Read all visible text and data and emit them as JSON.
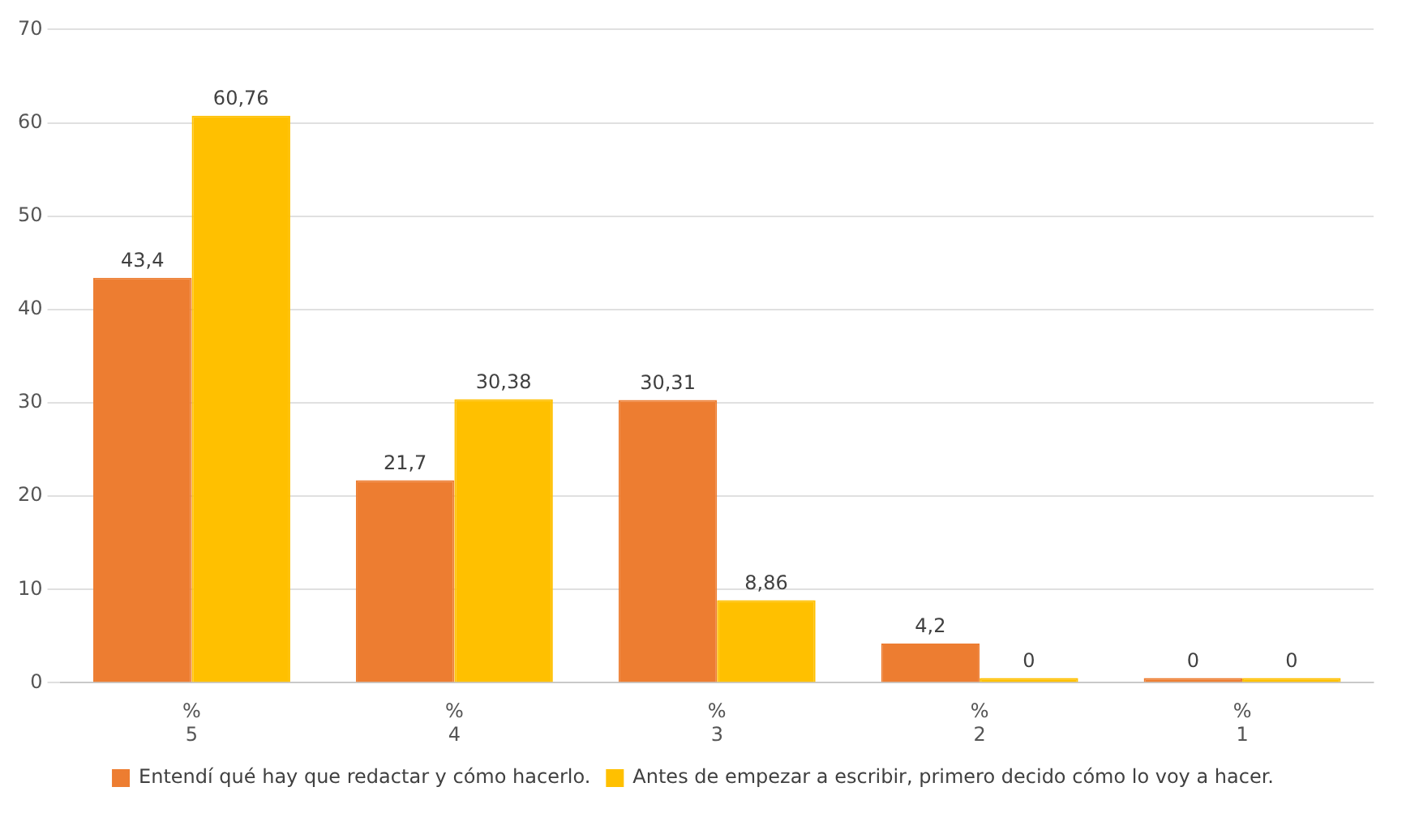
{
  "chart_data": {
    "type": "bar",
    "categories": [
      "%\n5",
      "%\n4",
      "%\n3",
      "%\n2",
      "%\n1"
    ],
    "series": [
      {
        "name": "Entendí qué hay que redactar y cómo hacerlo.",
        "color": "#ed7d31",
        "values": [
          43.4,
          21.7,
          30.31,
          4.2,
          0
        ],
        "value_labels": [
          "43,4",
          "21,7",
          "30,31",
          "4,2",
          "0"
        ]
      },
      {
        "name": "Antes de empezar a escribir, primero decido cómo lo voy a hacer.",
        "color": "#ffc000",
        "values": [
          60.76,
          30.38,
          8.86,
          0,
          0
        ],
        "value_labels": [
          "60,76",
          "30,38",
          "8,86",
          "0",
          "0"
        ]
      }
    ],
    "ylim": [
      0,
      70
    ],
    "yticks": [
      0,
      10,
      20,
      30,
      40,
      50,
      60,
      70
    ],
    "grid": "y",
    "legend": "bottom"
  }
}
